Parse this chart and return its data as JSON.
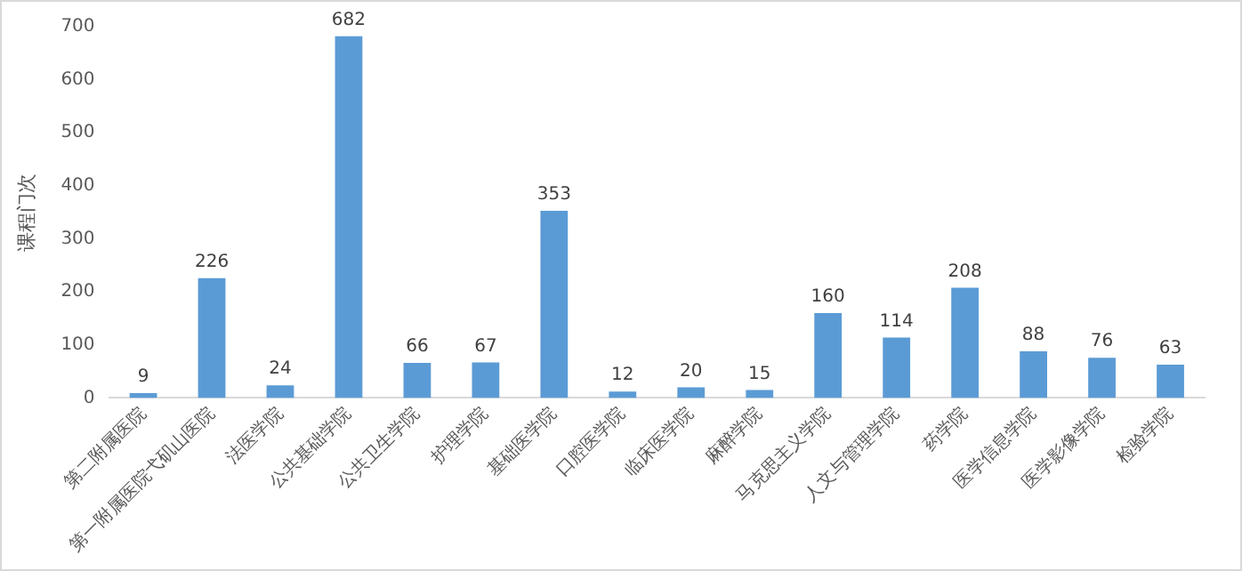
{
  "chart_data": {
    "type": "bar",
    "ylabel": "课程门次",
    "categories": [
      "第二附属医院",
      "第一附属医院弋矶山医院",
      "法医学院",
      "公共基础学院",
      "公共卫生学院",
      "护理学院",
      "基础医学院",
      "口腔医学院",
      "临床医学院",
      "麻醉学院",
      "马克思主义学院",
      "人文与管理学院",
      "药学院",
      "医学信息学院",
      "医学影像学院",
      "检验学院"
    ],
    "values": [
      9,
      226,
      24,
      682,
      66,
      67,
      353,
      12,
      20,
      15,
      160,
      114,
      208,
      88,
      76,
      63
    ],
    "color": "#5b9bd5",
    "ylim": [
      0,
      700
    ],
    "yticks": [
      0,
      100,
      200,
      300,
      400,
      500,
      600,
      700
    ],
    "grid": false,
    "data_labels": true
  }
}
